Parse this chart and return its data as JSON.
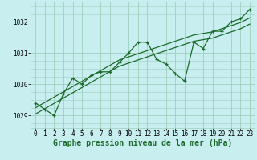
{
  "xlabel": "Graphe pression niveau de la mer (hPa)",
  "bg_color": "#c8eef0",
  "grid_color": "#9dcfbe",
  "line_color": "#1a6b2a",
  "x_values": [
    0,
    1,
    2,
    3,
    4,
    5,
    6,
    7,
    8,
    9,
    10,
    11,
    12,
    13,
    14,
    15,
    16,
    17,
    18,
    19,
    20,
    21,
    22,
    23
  ],
  "y_main": [
    1029.4,
    1029.2,
    1029.0,
    1029.7,
    1030.2,
    1030.0,
    1030.3,
    1030.4,
    1030.4,
    1030.7,
    1031.0,
    1031.35,
    1031.35,
    1030.8,
    1030.65,
    1030.35,
    1030.1,
    1031.35,
    1031.15,
    1031.7,
    1031.7,
    1032.0,
    1032.1,
    1032.4
  ],
  "y_trend1": [
    1029.25,
    1029.42,
    1029.59,
    1029.76,
    1029.93,
    1030.1,
    1030.27,
    1030.44,
    1030.61,
    1030.78,
    1030.88,
    1030.98,
    1031.08,
    1031.18,
    1031.28,
    1031.38,
    1031.48,
    1031.58,
    1031.63,
    1031.68,
    1031.78,
    1031.88,
    1031.98,
    1032.13
  ],
  "y_trend2": [
    1029.05,
    1029.22,
    1029.39,
    1029.56,
    1029.73,
    1029.9,
    1030.07,
    1030.24,
    1030.41,
    1030.58,
    1030.68,
    1030.78,
    1030.88,
    1030.98,
    1031.08,
    1031.18,
    1031.28,
    1031.38,
    1031.43,
    1031.48,
    1031.58,
    1031.68,
    1031.78,
    1031.93
  ],
  "ylim": [
    1028.6,
    1032.65
  ],
  "yticks": [
    1029,
    1030,
    1031,
    1032
  ],
  "xlim": [
    -0.5,
    23.5
  ],
  "xticks": [
    0,
    1,
    2,
    3,
    4,
    5,
    6,
    7,
    8,
    9,
    10,
    11,
    12,
    13,
    14,
    15,
    16,
    17,
    18,
    19,
    20,
    21,
    22,
    23
  ],
  "tick_fontsize": 5.5,
  "label_fontsize": 7.0,
  "marker": "+",
  "markersize": 3.5,
  "linewidth": 0.9
}
